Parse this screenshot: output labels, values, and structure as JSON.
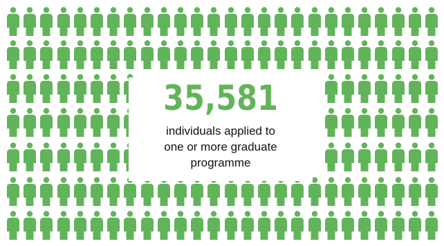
{
  "colors": {
    "accent": "#62b45a",
    "text": "#111111",
    "background": "#ffffff"
  },
  "icon": "person-icon",
  "stat": {
    "value": "35,581",
    "caption_lines": [
      "individuals applied to",
      "one or more graduate",
      "programme"
    ]
  }
}
